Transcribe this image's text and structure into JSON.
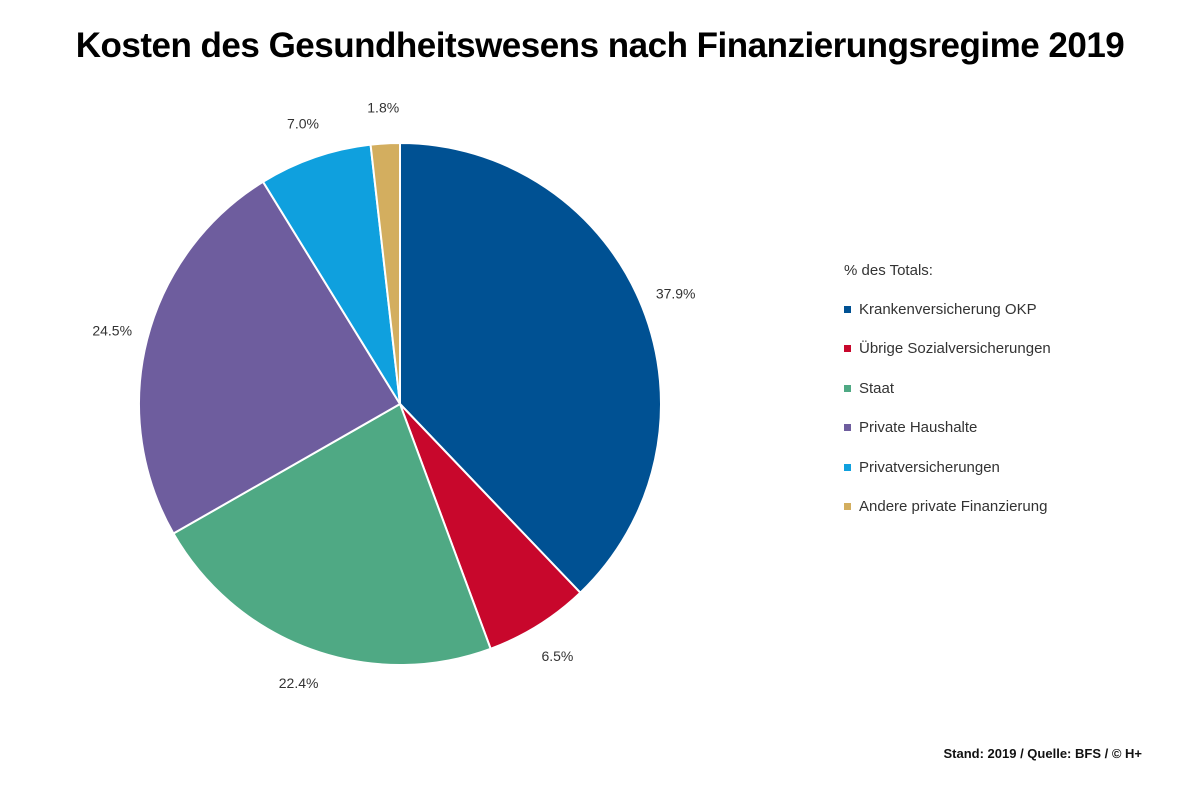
{
  "title": "Kosten des Gesundheitswesens nach Finanzierungsregime 2019",
  "footer": "Stand: 2019 / Quelle: BFS / © H+",
  "chart_data": {
    "type": "pie",
    "title": "Kosten des Gesundheitswesens nach Finanzierungsregime 2019",
    "legend_title": "% des Totals:",
    "legend_position": "right",
    "slices": [
      {
        "name": "Krankenversicherung OKP",
        "value": 37.9,
        "label": "37.9%",
        "color": "#005193"
      },
      {
        "name": "Übrige Sozialversicherungen",
        "value": 6.5,
        "label": "6.5%",
        "color": "#c8072c"
      },
      {
        "name": "Staat",
        "value": 22.4,
        "label": "22.4%",
        "color": "#4fa984"
      },
      {
        "name": "Private Haushalte",
        "value": 24.5,
        "label": "24.5%",
        "color": "#6e5d9e"
      },
      {
        "name": "Privatversicherungen",
        "value": 7.0,
        "label": "7.0%",
        "color": "#0fa0de"
      },
      {
        "name": "Andere private Finanzierung",
        "value": 1.8,
        "label": "1.8%",
        "color": "#d3ae5f"
      }
    ]
  }
}
